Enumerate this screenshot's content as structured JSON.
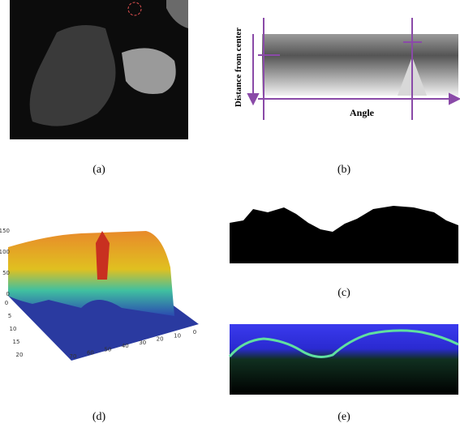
{
  "panels": {
    "a": {
      "caption": "(a)"
    },
    "b": {
      "caption": "(b)",
      "y_label": "Distance from center",
      "x_label": "Angle"
    },
    "c": {
      "caption": "(c)"
    },
    "d": {
      "caption": "(d)",
      "z_ticks": [
        "150",
        "100",
        "50",
        "0"
      ],
      "depth_ticks": [
        "0",
        "5",
        "10",
        "15",
        "20"
      ],
      "width_ticks": [
        "70",
        "60",
        "50",
        "40",
        "30",
        "20",
        "10",
        "0"
      ]
    },
    "e": {
      "caption": "(e)"
    }
  }
}
